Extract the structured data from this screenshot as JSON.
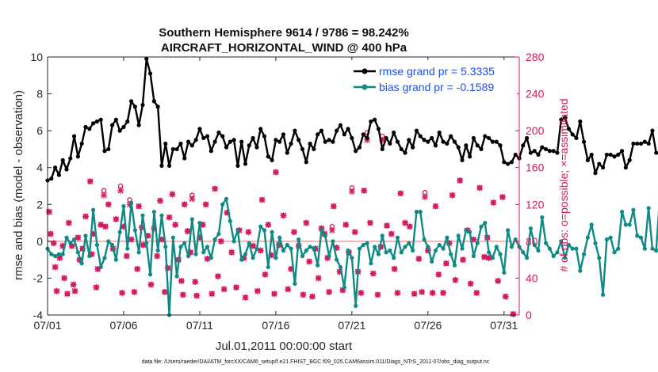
{
  "chart_data": {
    "type": "line",
    "title_line1": "Southern Hemisphere 9614 / 9786 = 98.242%",
    "title_line2": "AIRCRAFT_HORIZONTAL_WIND @ 400 hPa",
    "xlabel": "Jul.01,2011 00:00:00 start",
    "ylabel_left": "rmse and bias (model - observation)",
    "ylabel_right": "# of obs: o=possible; ×=assimilated",
    "footer": "data file: /Users/raeder/DAI/ATM_forcXX/CAM6_setup/f.e21.FHIST_BGC.f09_025.CAM6assim.011/Diags_NTrS_2011-07/obs_diag_output.nc",
    "x_ticks": [
      "07/01",
      "07/06",
      "07/11",
      "07/16",
      "07/21",
      "07/26",
      "07/31"
    ],
    "x_tick_days": [
      1,
      6,
      11,
      16,
      21,
      26,
      31
    ],
    "xlim": [
      1,
      32
    ],
    "ylim_left": [
      -4,
      10
    ],
    "ylim_right": [
      0,
      280
    ],
    "y_ticks_left": [
      "-4",
      "-2",
      "0",
      "2",
      "4",
      "6",
      "8",
      "10"
    ],
    "y_ticks_right": [
      "0",
      "40",
      "80",
      "120",
      "160",
      "200",
      "240",
      "280"
    ],
    "legend": {
      "placement": "top-right",
      "rmse_label": "rmse grand pr = 5.3335",
      "bias_label": "bias grand pr = -0.1589"
    },
    "colors": {
      "rmse": "#000000",
      "bias": "#0f8a86",
      "obs": "#d6175f",
      "zero_line": "#e8a0a0",
      "legend_text": "#1f4fe0"
    },
    "series": [
      {
        "name": "rmse grand pr = 5.3335",
        "x_start_day": 1,
        "step_days": 0.25,
        "values": [
          3.3,
          3.4,
          4.0,
          3.6,
          4.4,
          3.9,
          4.5,
          5.7,
          4.6,
          5.3,
          6.2,
          6.1,
          6.4,
          6.5,
          6.6,
          4.9,
          5.0,
          6.3,
          6.6,
          6.0,
          6.2,
          6.5,
          7.6,
          7.3,
          6.3,
          7.4,
          9.9,
          9.1,
          7.6,
          7.3,
          4.1,
          5.3,
          4.1,
          5.0,
          5.0,
          5.3,
          4.5,
          5.4,
          5.2,
          5.5,
          6.1,
          5.6,
          5.7,
          4.9,
          5.4,
          5.9,
          5.7,
          5.1,
          5.4,
          5.5,
          4.1,
          5.4,
          4.2,
          5.2,
          5.6,
          5.1,
          6.1,
          5.7,
          4.6,
          4.4,
          5.5,
          5.4,
          5.8,
          4.8,
          5.3,
          6.0,
          5.5,
          5.0,
          4.3,
          5.3,
          5.0,
          5.8,
          6.0,
          5.4,
          5.5,
          5.4,
          6.0,
          6.3,
          5.8,
          6.1,
          5.6,
          4.9,
          5.1,
          5.8,
          5.6,
          6.5,
          6.6,
          6.1,
          5.0,
          5.6,
          5.3,
          5.9,
          5.4,
          5.0,
          4.8,
          5.5,
          5.1,
          6.0,
          5.7,
          5.5,
          5.4,
          5.6,
          5.2,
          5.9,
          5.4,
          5.3,
          5.7,
          5.4,
          5.1,
          4.4,
          5.2,
          4.6,
          5.6,
          5.2,
          5.0,
          5.7,
          5.6,
          5.4,
          5.4,
          5.2,
          4.3,
          4.2,
          4.3,
          4.7,
          4.5,
          5.2,
          5.6,
          4.8,
          4.9,
          4.7,
          5.1,
          5.0,
          4.9,
          4.9,
          4.8,
          6.6,
          6.7,
          6.1,
          5.8,
          5.6,
          6.5,
          5.4,
          4.4,
          4.7,
          3.7,
          4.2,
          4.0,
          4.7,
          4.7,
          4.6,
          4.7,
          4.9,
          4.0,
          4.4,
          5.3,
          5.3,
          5.3,
          5.4,
          5.3,
          6.0,
          4.8
        ]
      },
      {
        "name": "bias grand pr = -0.1589",
        "x_start_day": 1,
        "step_days": 0.25,
        "values": [
          -0.4,
          -0.7,
          -0.8,
          -0.7,
          -0.7,
          0.2,
          -0.1,
          0.1,
          -0.6,
          -1.2,
          0.3,
          -0.8,
          1.7,
          -0.2,
          -1.4,
          -0.9,
          0.0,
          -0.2,
          -1.0,
          0.5,
          1.9,
          -0.4,
          2.1,
          0.6,
          -0.6,
          1.4,
          -0.1,
          -1.8,
          1.6,
          -0.5,
          1.4,
          -0.3,
          -4.0,
          0.2,
          -1.9,
          -0.3,
          -0.1,
          -0.8,
          1.2,
          -0.7,
          1.0,
          -0.6,
          -0.3,
          -0.9,
          0.1,
          0.4,
          2.0,
          2.3,
          1.1,
          0.0,
          0.6,
          -1.0,
          -0.7,
          -0.1,
          -0.9,
          -0.4,
          0.8,
          0.6,
          -1.4,
          0.5,
          -0.9,
          0.2,
          -0.5,
          -0.2,
          -0.4,
          -2.3,
          0.1,
          -0.8,
          -0.5,
          -0.3,
          -0.4,
          -1.3,
          0.6,
          0.3,
          -0.8,
          0.0,
          -1.0,
          -1.4,
          -2.5,
          -0.5,
          -0.9,
          -3.5,
          -0.4,
          -0.2,
          -0.1,
          -1.2,
          -0.3,
          -0.7,
          0.3,
          -0.6,
          -0.5,
          -0.9,
          0.2,
          -0.6,
          -0.3,
          -0.1,
          -0.5,
          1.6,
          1.6,
          0.1,
          -0.3,
          -1.1,
          -0.5,
          -0.2,
          -0.4,
          0.2,
          -0.7,
          -1.3,
          0.3,
          -0.4,
          0.6,
          0.5,
          -0.8,
          -0.1,
          0.8,
          1.0,
          -0.6,
          -0.9,
          -0.3,
          -0.7,
          -1.7,
          0.6,
          -0.3,
          0.1,
          -0.3,
          -0.6,
          -0.9,
          0.7,
          -0.2,
          -0.5,
          1.3,
          -0.1,
          -0.4,
          -0.8,
          -0.6,
          0.0,
          -0.9,
          -0.2,
          -0.4,
          -0.4,
          -1.6,
          -0.7,
          0.2,
          0.9,
          -0.1,
          -0.9,
          -2.9,
          0.1,
          0.2,
          -0.6,
          -0.4,
          1.6,
          0.9,
          0.9,
          1.7,
          0.3,
          0.2,
          -0.4,
          1.8,
          -0.4,
          -0.5,
          2.5,
          -0.3,
          -2.1
        ]
      }
    ],
    "obs_possible_points": [
      [
        1.1,
        112
      ],
      [
        1.2,
        88
      ],
      [
        1.4,
        78
      ],
      [
        1.5,
        52
      ],
      [
        1.6,
        26
      ],
      [
        1.8,
        62
      ],
      [
        2.0,
        75
      ],
      [
        2.1,
        40
      ],
      [
        2.3,
        23
      ],
      [
        2.4,
        100
      ],
      [
        2.6,
        75
      ],
      [
        2.7,
        33
      ],
      [
        2.8,
        26
      ],
      [
        3.0,
        84
      ],
      [
        3.1,
        60
      ],
      [
        3.3,
        72
      ],
      [
        3.5,
        107
      ],
      [
        3.8,
        145
      ],
      [
        3.9,
        66
      ],
      [
        4.0,
        88
      ],
      [
        4.2,
        30
      ],
      [
        4.3,
        50
      ],
      [
        4.5,
        98
      ],
      [
        4.7,
        135
      ],
      [
        4.8,
        96
      ],
      [
        5.0,
        120
      ],
      [
        5.3,
        72
      ],
      [
        5.5,
        104
      ],
      [
        5.8,
        140
      ],
      [
        5.9,
        24
      ],
      [
        6.0,
        96
      ],
      [
        6.2,
        64
      ],
      [
        6.4,
        125
      ],
      [
        6.5,
        82
      ],
      [
        6.7,
        25
      ],
      [
        6.9,
        50
      ],
      [
        7.0,
        118
      ],
      [
        7.2,
        95
      ],
      [
        7.3,
        76
      ],
      [
        7.6,
        86
      ],
      [
        7.8,
        33
      ],
      [
        8.0,
        94
      ],
      [
        8.2,
        64
      ],
      [
        8.4,
        124
      ],
      [
        8.5,
        82
      ],
      [
        8.7,
        25
      ],
      [
        8.9,
        51
      ],
      [
        9.0,
        106
      ],
      [
        9.2,
        131
      ],
      [
        9.4,
        98
      ],
      [
        9.6,
        60
      ],
      [
        9.8,
        37
      ],
      [
        9.9,
        22
      ],
      [
        10.0,
        120
      ],
      [
        10.2,
        91
      ],
      [
        10.4,
        68
      ],
      [
        10.5,
        130
      ],
      [
        10.7,
        36
      ],
      [
        10.8,
        21
      ],
      [
        11.0,
        84
      ],
      [
        11.2,
        98
      ],
      [
        11.4,
        120
      ],
      [
        11.5,
        61
      ],
      [
        11.8,
        23
      ],
      [
        12.0,
        137
      ],
      [
        12.2,
        42
      ],
      [
        12.4,
        80
      ],
      [
        12.6,
        28
      ],
      [
        12.8,
        111
      ],
      [
        13.1,
        68
      ],
      [
        13.4,
        30
      ],
      [
        13.6,
        92
      ],
      [
        13.9,
        62
      ],
      [
        14.0,
        19
      ],
      [
        14.2,
        90
      ],
      [
        14.5,
        75
      ],
      [
        14.8,
        26
      ],
      [
        15.0,
        70
      ],
      [
        15.1,
        125
      ],
      [
        15.3,
        44
      ],
      [
        15.5,
        98
      ],
      [
        15.7,
        65
      ],
      [
        15.9,
        23
      ],
      [
        16.0,
        155
      ],
      [
        16.2,
        76
      ],
      [
        16.5,
        108
      ],
      [
        16.8,
        28
      ],
      [
        17.0,
        50
      ],
      [
        17.2,
        90
      ],
      [
        17.5,
        75
      ],
      [
        17.8,
        22
      ],
      [
        18.0,
        100
      ],
      [
        18.2,
        58
      ],
      [
        18.4,
        20
      ],
      [
        18.6,
        72
      ],
      [
        18.8,
        40
      ],
      [
        19.0,
        94
      ],
      [
        19.2,
        88
      ],
      [
        19.4,
        62
      ],
      [
        19.5,
        25
      ],
      [
        19.7,
        96
      ],
      [
        19.8,
        118
      ],
      [
        20.0,
        73
      ],
      [
        20.2,
        47
      ],
      [
        20.4,
        27
      ],
      [
        20.6,
        98
      ],
      [
        20.8,
        68
      ],
      [
        21.0,
        138
      ],
      [
        21.2,
        90
      ],
      [
        21.4,
        47
      ],
      [
        21.6,
        24
      ],
      [
        21.8,
        135
      ],
      [
        22.0,
        198
      ],
      [
        22.2,
        100
      ],
      [
        22.4,
        45
      ],
      [
        22.7,
        22
      ],
      [
        22.9,
        74
      ],
      [
        23.0,
        194
      ],
      [
        23.3,
        97
      ],
      [
        23.6,
        88
      ],
      [
        23.8,
        50
      ],
      [
        24.0,
        24
      ],
      [
        24.2,
        132
      ],
      [
        24.5,
        100
      ],
      [
        24.8,
        96
      ],
      [
        25.1,
        23
      ],
      [
        25.4,
        61
      ],
      [
        25.6,
        25
      ],
      [
        25.8,
        133
      ],
      [
        26.0,
        70
      ],
      [
        26.3,
        24
      ],
      [
        26.5,
        118
      ],
      [
        26.7,
        44
      ],
      [
        27.0,
        24
      ],
      [
        27.2,
        56
      ],
      [
        27.4,
        78
      ],
      [
        27.6,
        130
      ],
      [
        27.8,
        38
      ],
      [
        28.1,
        146
      ],
      [
        28.3,
        60
      ],
      [
        28.6,
        92
      ],
      [
        28.8,
        34
      ],
      [
        29.0,
        82
      ],
      [
        29.2,
        24
      ],
      [
        29.4,
        138
      ],
      [
        29.7,
        63
      ],
      [
        29.9,
        84
      ],
      [
        30.0,
        62
      ],
      [
        30.3,
        122
      ],
      [
        30.6,
        37
      ],
      [
        30.9,
        128
      ],
      [
        31.1,
        20
      ],
      [
        31.4,
        243
      ],
      [
        31.6,
        1
      ]
    ],
    "obs_assimilated_points": [
      [
        1.1,
        112
      ],
      [
        1.2,
        88
      ],
      [
        1.4,
        78
      ],
      [
        1.5,
        52
      ],
      [
        1.6,
        26
      ],
      [
        1.8,
        62
      ],
      [
        2.0,
        75
      ],
      [
        2.1,
        40
      ],
      [
        2.3,
        23
      ],
      [
        2.4,
        100
      ],
      [
        2.6,
        75
      ],
      [
        2.7,
        33
      ],
      [
        2.8,
        26
      ],
      [
        3.0,
        84
      ],
      [
        3.1,
        60
      ],
      [
        3.3,
        72
      ],
      [
        3.5,
        107
      ],
      [
        3.8,
        145
      ],
      [
        3.9,
        66
      ],
      [
        4.0,
        88
      ],
      [
        4.2,
        30
      ],
      [
        4.3,
        50
      ],
      [
        4.5,
        98
      ],
      [
        4.7,
        130
      ],
      [
        4.8,
        96
      ],
      [
        5.0,
        120
      ],
      [
        5.3,
        72
      ],
      [
        5.5,
        104
      ],
      [
        5.8,
        135
      ],
      [
        5.9,
        24
      ],
      [
        6.0,
        96
      ],
      [
        6.2,
        64
      ],
      [
        6.4,
        120
      ],
      [
        6.5,
        82
      ],
      [
        6.7,
        25
      ],
      [
        6.9,
        50
      ],
      [
        7.0,
        118
      ],
      [
        7.2,
        95
      ],
      [
        7.3,
        76
      ],
      [
        7.6,
        86
      ],
      [
        7.8,
        33
      ],
      [
        8.0,
        94
      ],
      [
        8.2,
        64
      ],
      [
        8.4,
        124
      ],
      [
        8.5,
        82
      ],
      [
        8.7,
        25
      ],
      [
        8.9,
        51
      ],
      [
        9.0,
        106
      ],
      [
        9.2,
        131
      ],
      [
        9.4,
        98
      ],
      [
        9.6,
        60
      ],
      [
        9.8,
        37
      ],
      [
        9.9,
        22
      ],
      [
        10.0,
        120
      ],
      [
        10.2,
        91
      ],
      [
        10.4,
        68
      ],
      [
        10.5,
        126
      ],
      [
        10.7,
        36
      ],
      [
        10.8,
        21
      ],
      [
        11.0,
        84
      ],
      [
        11.2,
        98
      ],
      [
        11.4,
        120
      ],
      [
        11.5,
        61
      ],
      [
        11.8,
        23
      ],
      [
        12.0,
        137
      ],
      [
        12.2,
        42
      ],
      [
        12.4,
        80
      ],
      [
        12.6,
        28
      ],
      [
        12.8,
        111
      ],
      [
        13.1,
        68
      ],
      [
        13.4,
        30
      ],
      [
        13.6,
        92
      ],
      [
        13.9,
        62
      ],
      [
        14.0,
        19
      ],
      [
        14.2,
        90
      ],
      [
        14.5,
        75
      ],
      [
        14.8,
        26
      ],
      [
        15.0,
        70
      ],
      [
        15.1,
        125
      ],
      [
        15.3,
        44
      ],
      [
        15.5,
        98
      ],
      [
        15.7,
        65
      ],
      [
        15.9,
        23
      ],
      [
        16.0,
        155
      ],
      [
        16.2,
        76
      ],
      [
        16.5,
        108
      ],
      [
        16.8,
        28
      ],
      [
        17.0,
        50
      ],
      [
        17.2,
        90
      ],
      [
        17.5,
        75
      ],
      [
        17.8,
        22
      ],
      [
        18.0,
        100
      ],
      [
        18.2,
        58
      ],
      [
        18.4,
        20
      ],
      [
        18.6,
        72
      ],
      [
        18.8,
        40
      ],
      [
        19.0,
        94
      ],
      [
        19.2,
        88
      ],
      [
        19.4,
        62
      ],
      [
        19.5,
        25
      ],
      [
        19.7,
        92
      ],
      [
        19.8,
        118
      ],
      [
        20.0,
        73
      ],
      [
        20.2,
        47
      ],
      [
        20.4,
        27
      ],
      [
        20.6,
        98
      ],
      [
        20.8,
        68
      ],
      [
        21.0,
        134
      ],
      [
        21.2,
        90
      ],
      [
        21.4,
        47
      ],
      [
        21.6,
        24
      ],
      [
        21.8,
        135
      ],
      [
        22.0,
        190
      ],
      [
        22.2,
        100
      ],
      [
        22.4,
        45
      ],
      [
        22.7,
        22
      ],
      [
        22.9,
        74
      ],
      [
        23.0,
        190
      ],
      [
        23.3,
        97
      ],
      [
        23.6,
        88
      ],
      [
        23.8,
        50
      ],
      [
        24.0,
        24
      ],
      [
        24.2,
        132
      ],
      [
        24.5,
        100
      ],
      [
        24.8,
        96
      ],
      [
        25.1,
        23
      ],
      [
        25.4,
        61
      ],
      [
        25.6,
        25
      ],
      [
        25.8,
        128
      ],
      [
        26.0,
        70
      ],
      [
        26.3,
        24
      ],
      [
        26.5,
        118
      ],
      [
        26.7,
        44
      ],
      [
        27.0,
        24
      ],
      [
        27.2,
        56
      ],
      [
        27.4,
        78
      ],
      [
        27.6,
        130
      ],
      [
        27.8,
        38
      ],
      [
        28.1,
        146
      ],
      [
        28.3,
        60
      ],
      [
        28.6,
        92
      ],
      [
        28.8,
        34
      ],
      [
        29.0,
        82
      ],
      [
        29.2,
        24
      ],
      [
        29.4,
        138
      ],
      [
        29.7,
        63
      ],
      [
        29.9,
        84
      ],
      [
        30.0,
        62
      ],
      [
        30.3,
        122
      ],
      [
        30.6,
        37
      ],
      [
        30.9,
        128
      ],
      [
        31.1,
        20
      ],
      [
        31.4,
        243
      ],
      [
        31.6,
        1
      ]
    ]
  }
}
